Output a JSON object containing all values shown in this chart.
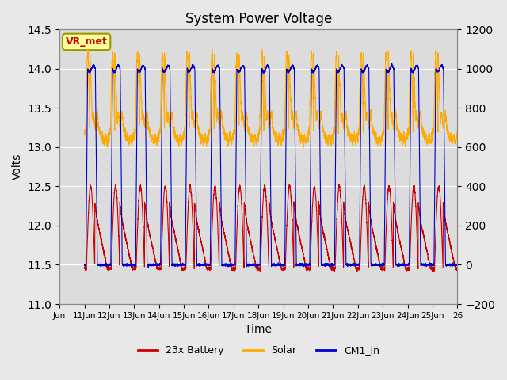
{
  "title": "System Power Voltage",
  "xlabel": "Time",
  "ylabel": "Volts",
  "xlim": [
    0,
    16
  ],
  "ylim_left": [
    11.0,
    14.5
  ],
  "ylim_right": [
    -200,
    1200
  ],
  "yticks_left": [
    11.0,
    11.5,
    12.0,
    12.5,
    13.0,
    13.5,
    14.0,
    14.5
  ],
  "yticks_right": [
    -200,
    0,
    200,
    400,
    600,
    800,
    1000,
    1200
  ],
  "xtick_pos": [
    0,
    1,
    2,
    3,
    4,
    5,
    6,
    7,
    8,
    9,
    10,
    11,
    12,
    13,
    14,
    15,
    16
  ],
  "xtick_labels": [
    "Jun",
    "11Jun",
    "12Jun",
    "13Jun",
    "14Jun",
    "15Jun",
    "16Jun",
    "17Jun",
    "18Jun",
    "19Jun",
    "20Jun",
    "21Jun",
    "22Jun",
    "23Jun",
    "24Jun",
    "25Jun",
    "26"
  ],
  "background_color": "#e8e8e8",
  "plot_bg_color": "#dcdcdc",
  "grid_color": "#ffffff",
  "legend_colors": [
    "#cc0000",
    "#ffaa00",
    "#0000cc"
  ],
  "legend_labels": [
    "23x Battery",
    "Solar",
    "CM1_in"
  ],
  "annotation_text": "VR_met",
  "annotation_color": "#cc0000",
  "annotation_bg": "#ffff99",
  "annotation_border": "#999900"
}
